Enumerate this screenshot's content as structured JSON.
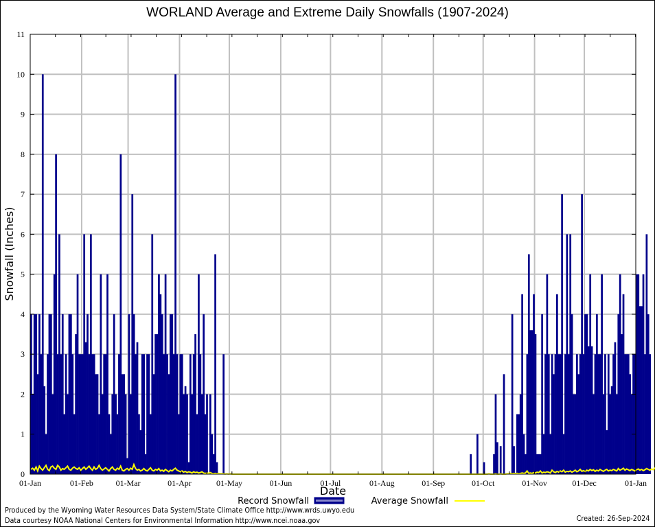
{
  "chart_data": {
    "type": "bar",
    "title": "WORLAND Average and Extreme Daily Snowfalls (1907-2024)",
    "xlabel": "Date",
    "ylabel": "Snowfall (Inches)",
    "ylim": [
      0,
      11
    ],
    "yticks": [
      "0",
      "1",
      "2",
      "3",
      "4",
      "5",
      "6",
      "7",
      "8",
      "9",
      "10",
      "11"
    ],
    "xticks": [
      "01-Jan",
      "01-Feb",
      "01-Mar",
      "01-Apr",
      "01-May",
      "01-Jun",
      "01-Jul",
      "01-Aug",
      "01-Sep",
      "01-Oct",
      "01-Nov",
      "01-Dec",
      "01-Jan"
    ],
    "xtick_days": [
      0,
      31,
      59,
      90,
      120,
      151,
      181,
      212,
      243,
      273,
      304,
      334,
      365
    ],
    "grid": true,
    "legend_position": "bottom-center",
    "series": [
      {
        "name": "Record Snowfall",
        "kind": "bar",
        "color": "#00008b",
        "values": [
          4,
          2,
          4,
          4,
          2.5,
          4,
          3,
          10,
          2.2,
          1,
          3,
          4,
          4,
          2,
          5,
          8,
          3,
          6,
          3,
          4,
          1.5,
          3,
          2,
          4,
          4,
          3,
          1.5,
          3.5,
          5,
          3,
          3,
          3,
          6,
          3.3,
          4,
          3,
          6,
          3,
          3,
          2.5,
          2.5,
          1.5,
          5,
          2,
          3,
          3,
          5,
          1.5,
          1,
          2,
          4,
          2,
          1.5,
          3,
          8,
          2.5,
          2.5,
          2,
          0.4,
          4,
          2,
          7,
          4,
          3,
          3.3,
          1.5,
          1.1,
          3,
          3,
          0.5,
          3,
          3,
          1.5,
          6,
          2.5,
          3.5,
          3.5,
          5,
          4.5,
          4,
          3,
          5,
          3,
          2.5,
          4,
          4,
          3,
          10,
          3,
          1.5,
          3,
          3,
          2,
          2.2,
          2,
          0.3,
          3,
          2,
          3,
          3.5,
          1.5,
          5,
          3,
          2,
          4,
          1.5,
          2,
          0,
          2,
          1,
          0.5,
          5.5,
          0.3,
          0,
          0,
          0,
          3,
          0,
          0,
          0,
          0,
          0,
          0,
          0,
          0,
          0,
          0,
          0,
          0,
          0,
          0,
          0,
          0,
          0,
          0,
          0,
          0,
          0,
          0,
          0,
          0,
          0,
          0,
          0,
          0,
          0,
          0,
          0,
          0,
          0,
          0,
          0,
          0,
          0,
          0,
          0,
          0,
          0,
          0,
          0,
          0,
          0,
          0,
          0,
          0,
          0,
          0,
          0,
          0,
          0,
          0,
          0,
          0,
          0,
          0,
          0,
          0,
          0,
          0,
          0,
          0,
          0,
          0,
          0,
          0,
          0,
          0,
          0,
          0,
          0,
          0,
          0,
          0,
          0,
          0,
          0,
          0,
          0,
          0,
          0,
          0,
          0,
          0,
          0,
          0,
          0,
          0,
          0,
          0,
          0,
          0,
          0,
          0,
          0,
          0,
          0,
          0,
          0,
          0,
          0,
          0,
          0,
          0,
          0,
          0,
          0,
          0,
          0,
          0,
          0,
          0,
          0,
          0,
          0,
          0,
          0,
          0,
          0,
          0,
          0,
          0,
          0,
          0,
          0,
          0,
          0,
          0,
          0,
          0,
          0,
          0,
          0,
          0,
          0,
          0,
          0,
          0,
          0,
          0,
          0,
          0,
          0,
          0,
          0,
          0,
          0.5,
          0,
          0,
          0,
          1,
          0,
          0,
          0,
          0.3,
          0,
          0,
          0,
          0,
          0,
          0.5,
          2,
          0.8,
          0,
          0.7,
          0,
          2.5,
          0,
          0,
          0,
          0,
          4,
          0.7,
          0,
          1.5,
          1.5,
          2,
          4.5,
          1,
          0.5,
          3,
          5.5,
          3.6,
          3.6,
          4.5,
          3.5,
          0.5,
          0.5,
          0.5,
          4,
          1,
          3,
          5,
          3,
          1,
          3,
          2.5,
          3,
          4.5,
          3,
          3,
          7,
          1,
          3,
          6,
          3,
          6,
          4,
          2,
          2,
          3,
          2.5,
          3,
          7,
          3,
          4,
          4,
          3.2,
          5,
          3.2,
          2,
          3,
          4,
          3,
          3,
          5,
          2,
          3,
          1.1,
          3,
          2,
          2.2,
          3,
          3.3,
          2,
          4,
          5,
          3.5,
          4.5,
          3,
          3,
          3,
          2.5,
          2,
          3,
          3,
          5,
          5,
          4.2,
          4.2,
          5,
          3,
          6,
          4,
          3
        ],
        "days": 365
      },
      {
        "name": "Average Snowfall",
        "kind": "line",
        "color": "#ffff00",
        "values": [
          0.12,
          0.15,
          0.1,
          0.18,
          0.08,
          0.2,
          0.14,
          0.1,
          0.16,
          0.22,
          0.12,
          0.09,
          0.18,
          0.2,
          0.15,
          0.12,
          0.22,
          0.18,
          0.1,
          0.14,
          0.12,
          0.16,
          0.2,
          0.12,
          0.1,
          0.15,
          0.18,
          0.14,
          0.12,
          0.16,
          0.1,
          0.14,
          0.18,
          0.12,
          0.16,
          0.2,
          0.14,
          0.1,
          0.18,
          0.12,
          0.15,
          0.22,
          0.14,
          0.1,
          0.13,
          0.16,
          0.12,
          0.08,
          0.14,
          0.18,
          0.12,
          0.1,
          0.15,
          0.12,
          0.2,
          0.1,
          0.08,
          0.12,
          0.14,
          0.1,
          0.15,
          0.12,
          0.24,
          0.14,
          0.1,
          0.12,
          0.08,
          0.1,
          0.14,
          0.1,
          0.08,
          0.12,
          0.16,
          0.1,
          0.08,
          0.12,
          0.1,
          0.14,
          0.08,
          0.1,
          0.07,
          0.12,
          0.09,
          0.06,
          0.1,
          0.08,
          0.12,
          0.15,
          0.1,
          0.08,
          0.06,
          0.08,
          0.05,
          0.07,
          0.04,
          0.06,
          0.05,
          0.03,
          0.06,
          0.04,
          0.05,
          0.03,
          0.04,
          0.06,
          0.03,
          0.02,
          0.03,
          0.02,
          0.04,
          0.02,
          0.01,
          0.02,
          0.01,
          0.02,
          0.01,
          0.01,
          0.01,
          0.0,
          0.01,
          0.0,
          0.01,
          0,
          0,
          0,
          0,
          0,
          0,
          0,
          0,
          0,
          0,
          0,
          0,
          0,
          0,
          0,
          0,
          0,
          0,
          0,
          0,
          0,
          0,
          0,
          0,
          0,
          0,
          0,
          0,
          0,
          0,
          0,
          0,
          0,
          0,
          0,
          0,
          0,
          0,
          0,
          0,
          0,
          0,
          0,
          0,
          0,
          0,
          0,
          0,
          0,
          0,
          0,
          0,
          0,
          0,
          0,
          0,
          0,
          0,
          0,
          0,
          0,
          0,
          0,
          0,
          0,
          0,
          0,
          0,
          0,
          0,
          0,
          0,
          0,
          0,
          0,
          0,
          0,
          0,
          0,
          0,
          0,
          0,
          0,
          0,
          0,
          0,
          0,
          0,
          0,
          0,
          0,
          0,
          0,
          0,
          0,
          0,
          0,
          0,
          0,
          0,
          0,
          0,
          0,
          0,
          0,
          0,
          0,
          0,
          0,
          0,
          0,
          0,
          0,
          0,
          0,
          0,
          0,
          0,
          0,
          0,
          0,
          0,
          0,
          0,
          0,
          0,
          0,
          0,
          0,
          0,
          0,
          0,
          0,
          0,
          0,
          0,
          0,
          0,
          0,
          0,
          0,
          0,
          0,
          0,
          0,
          0,
          0,
          0,
          0,
          0,
          0,
          0,
          0,
          0,
          0,
          0.01,
          0,
          0,
          0,
          0.01,
          0,
          0,
          0.01,
          0,
          0,
          0,
          0.01,
          0.01,
          0.02,
          0.01,
          0.02,
          0.01,
          0.02,
          0.01,
          0.02,
          0.03,
          0.02,
          0.03,
          0.08,
          0.02,
          0.03,
          0.02,
          0.04,
          0.03,
          0.05,
          0.04,
          0.08,
          0.03,
          0.05,
          0.04,
          0.06,
          0.05,
          0.03,
          0.1,
          0.06,
          0.04,
          0.07,
          0.05,
          0.08,
          0.06,
          0.1,
          0.05,
          0.07,
          0.06,
          0.08,
          0.05,
          0.07,
          0.1,
          0.06,
          0.08,
          0.12,
          0.07,
          0.09,
          0.06,
          0.1,
          0.08,
          0.12,
          0.09,
          0.11,
          0.07,
          0.1,
          0.08,
          0.12,
          0.09,
          0.07,
          0.1,
          0.12,
          0.08,
          0.1,
          0.09,
          0.12,
          0.1,
          0.08,
          0.14,
          0.1,
          0.12,
          0.15,
          0.1,
          0.13,
          0.11,
          0.09,
          0.12,
          0.1,
          0.08,
          0.11,
          0.13,
          0.1,
          0.12,
          0.09,
          0.11,
          0.14,
          0.12,
          0.1,
          0.13,
          0.11,
          0.15,
          0.12,
          0.1,
          0.14,
          0.12,
          0.11,
          0.13,
          0.1,
          0.12,
          0.14,
          0.11,
          0.13,
          0.12
        ]
      }
    ]
  },
  "footer": {
    "produced_by": "Produced by the Wyoming Water Resources Data System/State Climate Office http://www.wrds.uwyo.edu",
    "data_courtesy": "Data courtesy NOAA National Centers for Environmental Information http://www.ncei.noaa.gov",
    "created": "Created:  26-Sep-2024"
  }
}
